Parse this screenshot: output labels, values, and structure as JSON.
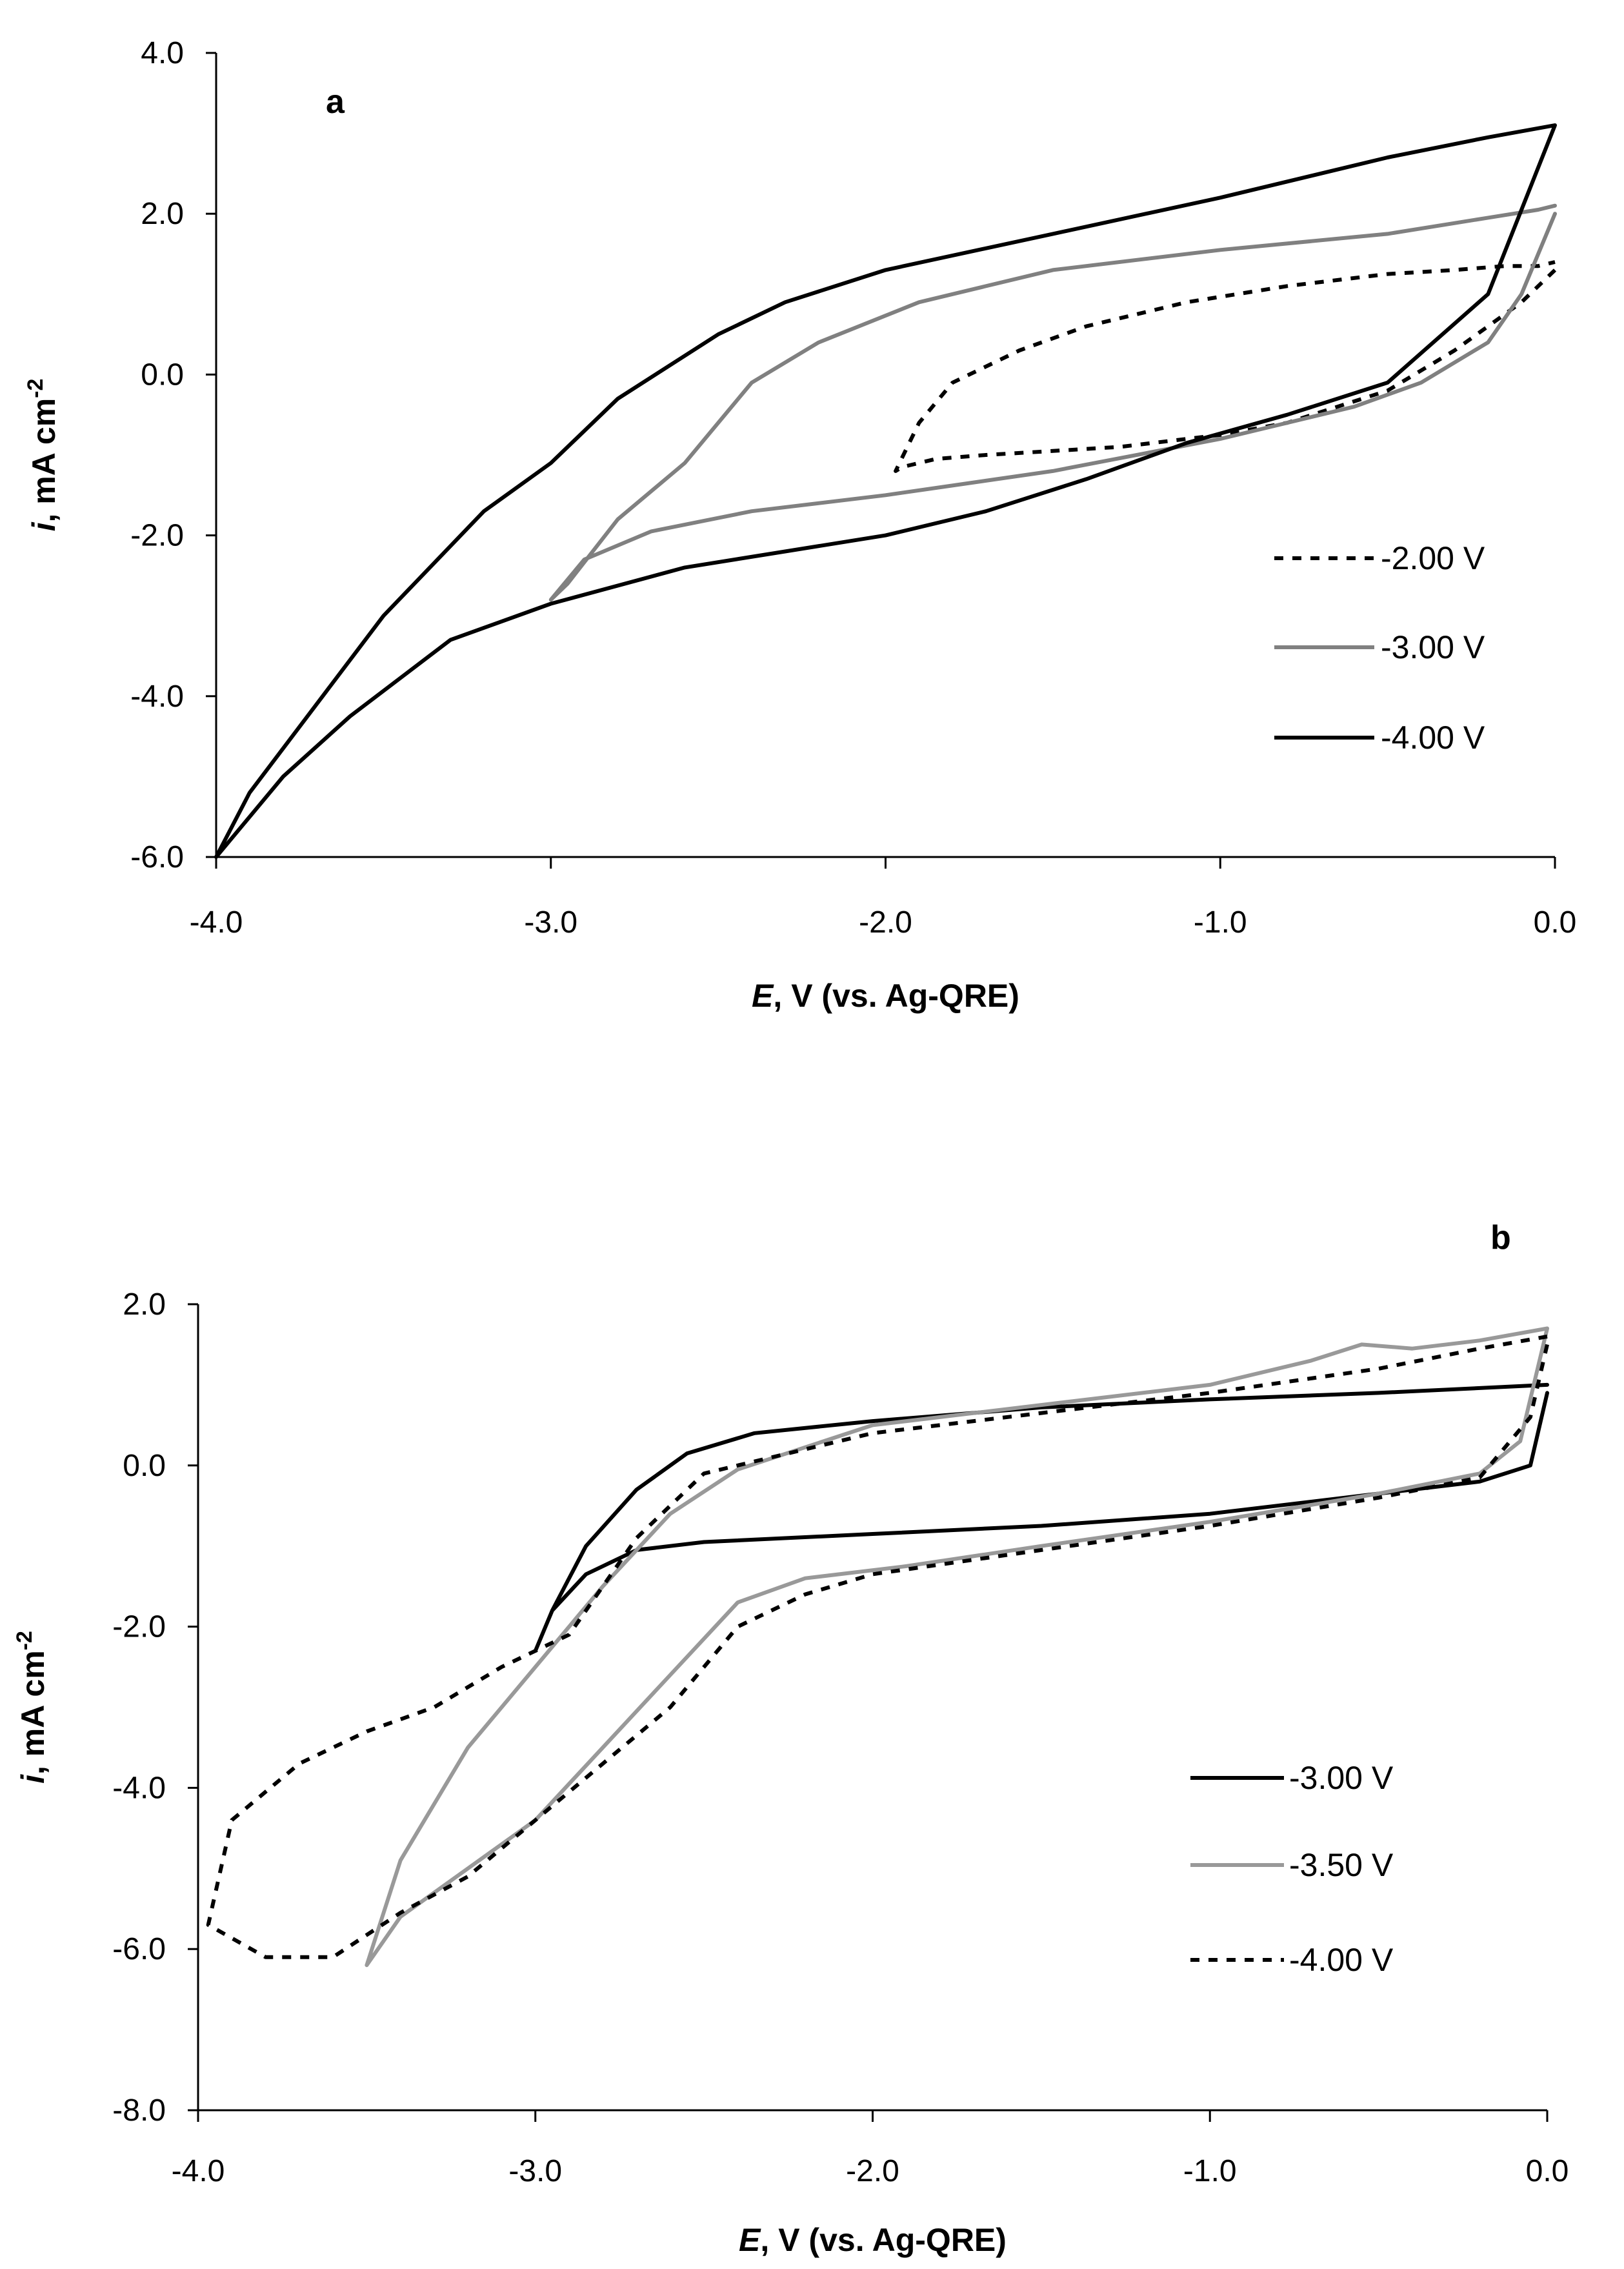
{
  "chart_data": [
    {
      "type": "line",
      "panel_label": "a",
      "title": "",
      "xlabel_italic": "E",
      "xlabel_rest": ", V (vs. Ag-QRE)",
      "ylabel_italic": "i",
      "ylabel_rest": ", mA cm",
      "ylabel_sup": "-2",
      "xlim": [
        -4.0,
        0.0
      ],
      "ylim": [
        -6.0,
        4.0
      ],
      "xticks": [
        -4.0,
        -3.0,
        -2.0,
        -1.0,
        0.0
      ],
      "xtick_labels": [
        "-4.0",
        "-3.0",
        "-2.0",
        "-1.0",
        "0.0"
      ],
      "yticks": [
        -6.0,
        -4.0,
        -2.0,
        0.0,
        2.0,
        4.0
      ],
      "ytick_labels": [
        "-6.0",
        "-4.0",
        "-2.0",
        "0.0",
        "2.0",
        "4.0"
      ],
      "grid": false,
      "legend_position": "right",
      "series": [
        {
          "name": "-2.00 V",
          "color": "#000000",
          "style": "dashed",
          "x": [
            0.0,
            -0.1,
            -0.2,
            -0.3,
            -0.5,
            -0.8,
            -1.0,
            -1.3,
            -1.5,
            -1.7,
            -1.85,
            -1.95,
            -1.97,
            -1.9,
            -1.8,
            -1.6,
            -1.4,
            -1.1,
            -0.8,
            -0.5,
            -0.3,
            -0.15,
            -0.05,
            0.0
          ],
          "y": [
            1.3,
            0.9,
            0.6,
            0.3,
            -0.2,
            -0.6,
            -0.75,
            -0.9,
            -0.95,
            -1.0,
            -1.05,
            -1.15,
            -1.2,
            -0.6,
            -0.1,
            0.3,
            0.6,
            0.9,
            1.1,
            1.25,
            1.3,
            1.35,
            1.35,
            1.4
          ]
        },
        {
          "name": "-3.00 V",
          "color": "#808080",
          "style": "solid",
          "x": [
            0.0,
            -0.1,
            -0.2,
            -0.4,
            -0.6,
            -1.0,
            -1.5,
            -2.0,
            -2.4,
            -2.7,
            -2.9,
            -3.0,
            -2.95,
            -2.8,
            -2.6,
            -2.4,
            -2.2,
            -1.9,
            -1.5,
            -1.0,
            -0.5,
            -0.2,
            -0.05,
            0.0
          ],
          "y": [
            2.0,
            1.0,
            0.4,
            -0.1,
            -0.4,
            -0.8,
            -1.2,
            -1.5,
            -1.7,
            -1.95,
            -2.3,
            -2.8,
            -2.6,
            -1.8,
            -1.1,
            -0.1,
            0.4,
            0.9,
            1.3,
            1.55,
            1.75,
            1.95,
            2.05,
            2.1
          ]
        },
        {
          "name": "-4.00 V",
          "color": "#000000",
          "style": "solid",
          "x": [
            0.0,
            -0.2,
            -0.5,
            -0.8,
            -1.1,
            -1.4,
            -1.7,
            -2.0,
            -2.3,
            -2.6,
            -3.0,
            -3.3,
            -3.6,
            -3.8,
            -4.0,
            -3.9,
            -3.7,
            -3.5,
            -3.2,
            -3.0,
            -2.8,
            -2.5,
            -2.3,
            -2.0,
            -1.5,
            -1.0,
            -0.5,
            -0.2,
            0.0
          ],
          "y": [
            3.1,
            1.0,
            -0.1,
            -0.5,
            -0.85,
            -1.3,
            -1.7,
            -2.0,
            -2.2,
            -2.4,
            -2.85,
            -3.3,
            -4.25,
            -5.0,
            -6.0,
            -5.2,
            -4.1,
            -3.0,
            -1.7,
            -1.1,
            -0.3,
            0.5,
            0.9,
            1.3,
            1.75,
            2.2,
            2.7,
            2.95,
            3.1
          ]
        }
      ]
    },
    {
      "type": "line",
      "panel_label": "b",
      "title": "",
      "xlabel_italic": "E",
      "xlabel_rest": ", V (vs. Ag-QRE)",
      "ylabel_italic": "i",
      "ylabel_rest": ", mA cm",
      "ylabel_sup": "-2",
      "xlim": [
        -4.0,
        0.0
      ],
      "ylim": [
        -8.0,
        2.0
      ],
      "xticks": [
        -4.0,
        -3.0,
        -2.0,
        -1.0,
        0.0
      ],
      "xtick_labels": [
        "-4.0",
        "-3.0",
        "-2.0",
        "-1.0",
        "0.0"
      ],
      "yticks": [
        -8.0,
        -6.0,
        -4.0,
        -2.0,
        0.0,
        2.0
      ],
      "ytick_labels": [
        "-8.0",
        "-6.0",
        "-4.0",
        "-2.0",
        "0.0",
        "2.0"
      ],
      "grid": false,
      "legend_position": "right",
      "series": [
        {
          "name": "-3.00 V",
          "color": "#000000",
          "style": "solid",
          "x": [
            0.0,
            -0.05,
            -0.2,
            -0.5,
            -1.0,
            -1.5,
            -2.0,
            -2.5,
            -2.7,
            -2.85,
            -2.95,
            -3.0,
            -2.95,
            -2.85,
            -2.7,
            -2.55,
            -2.35,
            -2.0,
            -1.5,
            -1.0,
            -0.5,
            0.0
          ],
          "y": [
            0.9,
            0.0,
            -0.2,
            -0.35,
            -0.6,
            -0.75,
            -0.85,
            -0.95,
            -1.05,
            -1.35,
            -1.8,
            -2.3,
            -1.8,
            -1.0,
            -0.3,
            0.15,
            0.4,
            0.55,
            0.72,
            0.82,
            0.9,
            1.0
          ]
        },
        {
          "name": "-3.50 V",
          "color": "#999999",
          "style": "solid",
          "x": [
            0.0,
            -0.08,
            -0.2,
            -0.5,
            -1.0,
            -1.5,
            -1.9,
            -2.2,
            -2.4,
            -2.6,
            -2.8,
            -3.0,
            -3.2,
            -3.4,
            -3.5,
            -3.4,
            -3.2,
            -3.0,
            -2.8,
            -2.6,
            -2.4,
            -2.0,
            -1.5,
            -1.0,
            -0.7,
            -0.55,
            -0.4,
            -0.2,
            0.0
          ],
          "y": [
            1.7,
            0.3,
            -0.1,
            -0.35,
            -0.7,
            -1.0,
            -1.25,
            -1.4,
            -1.7,
            -2.6,
            -3.5,
            -4.4,
            -5.0,
            -5.6,
            -6.2,
            -4.9,
            -3.5,
            -2.5,
            -1.5,
            -0.6,
            -0.05,
            0.5,
            0.75,
            1.0,
            1.3,
            1.5,
            1.45,
            1.55,
            1.7
          ]
        },
        {
          "name": "-4.00 V",
          "color": "#000000",
          "style": "dashed",
          "x": [
            0.0,
            -0.05,
            -0.2,
            -0.5,
            -1.0,
            -1.5,
            -2.0,
            -2.2,
            -2.4,
            -2.6,
            -2.8,
            -3.0,
            -3.2,
            -3.4,
            -3.6,
            -3.8,
            -3.97,
            -3.9,
            -3.7,
            -3.5,
            -3.3,
            -3.1,
            -2.9,
            -2.7,
            -2.5,
            -2.0,
            -1.5,
            -1.0,
            -0.5,
            -0.2,
            0.0
          ],
          "y": [
            1.5,
            0.6,
            -0.15,
            -0.4,
            -0.75,
            -1.05,
            -1.35,
            -1.6,
            -2.0,
            -3.0,
            -3.7,
            -4.4,
            -5.1,
            -5.55,
            -6.1,
            -6.1,
            -5.7,
            -4.4,
            -3.7,
            -3.3,
            -3.0,
            -2.5,
            -2.1,
            -0.9,
            -0.1,
            0.4,
            0.65,
            0.9,
            1.2,
            1.45,
            1.6
          ]
        }
      ]
    }
  ]
}
